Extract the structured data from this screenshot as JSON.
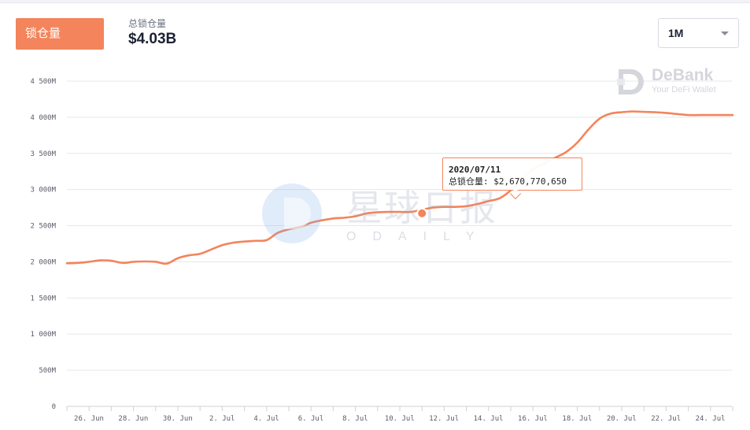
{
  "header": {
    "tlv_button_label": "锁仓量",
    "stat_label": "总锁仓量",
    "stat_value": "$4.03B",
    "range_value": "1M"
  },
  "watermarks": {
    "debank_name": "DeBank",
    "debank_tagline": "Your DeFi Wallet",
    "odaily_cn": "星球日报",
    "odaily_en": "ODAILY"
  },
  "tooltip": {
    "date": "2020/07/11",
    "label": "总锁仓量:",
    "value": "$2,670,770,650"
  },
  "colors": {
    "accent": "#f3845b",
    "grid": "#e6e7ec"
  },
  "chart_data": {
    "type": "line",
    "grid": true,
    "ylim": [
      0,
      4500
    ],
    "y_ticks": [
      "0",
      "500M",
      "1 000M",
      "1 500M",
      "2 000M",
      "2 500M",
      "3 000M",
      "3 500M",
      "4 000M",
      "4 500M"
    ],
    "x_tick_labels": [
      "26. Jun",
      "28. Jun",
      "30. Jun",
      "2. Jul",
      "4. Jul",
      "6. Jul",
      "8. Jul",
      "10. Jul",
      "12. Jul",
      "14. Jul",
      "16. Jul",
      "18. Jul",
      "20. Jul",
      "22. Jul",
      "24. Jul"
    ],
    "series": [
      {
        "x": [
          0,
          0.5,
          1,
          1.5,
          2,
          2.5,
          3,
          3.5,
          4,
          4.5,
          5,
          5.5,
          6,
          6.5,
          7,
          7.5,
          8,
          8.5,
          9,
          9.5,
          10,
          10.5,
          11,
          11.5,
          12,
          12.5,
          13,
          13.5,
          14,
          14.5,
          15,
          15.5,
          16,
          16.5,
          17,
          17.5,
          18,
          18.5,
          19,
          19.5,
          20,
          20.5,
          21,
          21.5,
          22,
          22.5,
          23,
          23.5,
          24,
          24.5,
          25,
          25.5,
          26,
          26.5,
          27,
          27.5,
          28,
          28.5,
          29,
          29.5,
          30
        ],
        "values": [
          1980,
          1985,
          2000,
          2020,
          2015,
          1985,
          2000,
          2005,
          2000,
          1975,
          2050,
          2090,
          2110,
          2170,
          2230,
          2265,
          2280,
          2290,
          2300,
          2400,
          2450,
          2480,
          2540,
          2575,
          2600,
          2610,
          2630,
          2670,
          2685,
          2690,
          2690,
          2690,
          2720,
          2750,
          2760,
          2760,
          2770,
          2800,
          2840,
          2880,
          2990,
          3150,
          3280,
          3360,
          3440,
          3520,
          3650,
          3830,
          3980,
          4050,
          4070,
          4080,
          4075,
          4070,
          4060,
          4045,
          4030,
          4030,
          4030,
          4030,
          4030
        ]
      }
    ],
    "highlight_point": {
      "x": 16,
      "value": 2670.77
    }
  }
}
